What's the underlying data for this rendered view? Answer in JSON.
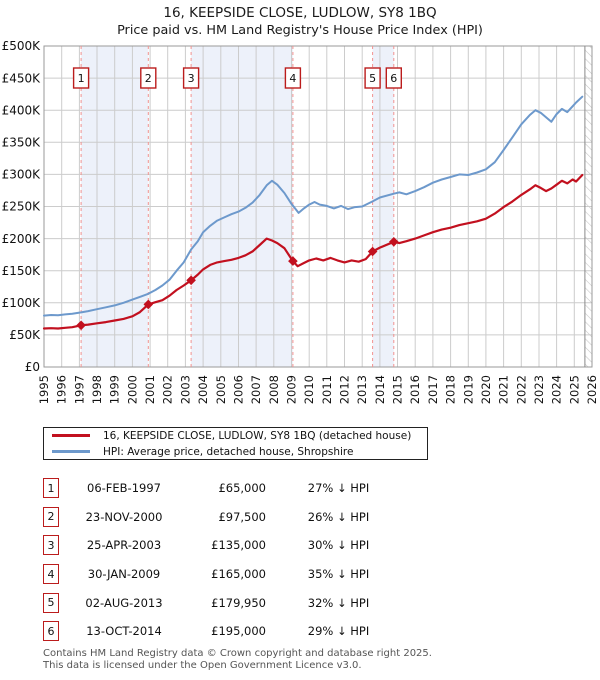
{
  "chart_data": {
    "type": "line",
    "title": "16, KEEPSIDE CLOSE, LUDLOW, SY8 1BQ",
    "subtitle": "Price paid vs. HM Land Registry's House Price Index (HPI)",
    "x_range": [
      1995,
      2026
    ],
    "y_range": [
      0,
      500000
    ],
    "y_tick_step": 50000,
    "grid": true,
    "legend_position": "bottom",
    "x_tick_labels": [
      "1995",
      "1996",
      "1997",
      "1998",
      "1999",
      "2000",
      "2001",
      "2002",
      "2003",
      "2004",
      "2005",
      "2006",
      "2007",
      "2008",
      "2009",
      "2010",
      "2011",
      "2012",
      "2013",
      "2014",
      "2015",
      "2016",
      "2017",
      "2018",
      "2019",
      "2020",
      "2021",
      "2022",
      "2023",
      "2024",
      "2025",
      "2026"
    ],
    "y_tick_labels": [
      "£0",
      "£50K",
      "£100K",
      "£150K",
      "£200K",
      "£250K",
      "£300K",
      "£350K",
      "£400K",
      "£450K",
      "£500K"
    ],
    "future_hatch_start": 2025.6,
    "series": [
      {
        "id": "property",
        "name": "16, KEEPSIDE CLOSE, LUDLOW, SY8 1BQ (detached house)",
        "color": "#c2101f",
        "width": 2.2,
        "points": [
          [
            1995.0,
            60000
          ],
          [
            1995.4,
            60500
          ],
          [
            1995.8,
            60000
          ],
          [
            1996.2,
            61000
          ],
          [
            1996.6,
            62000
          ],
          [
            1997.1,
            65000
          ],
          [
            1997.5,
            66000
          ],
          [
            1998.0,
            68000
          ],
          [
            1998.5,
            70000
          ],
          [
            1999.0,
            72500
          ],
          [
            1999.5,
            75000
          ],
          [
            2000.0,
            79000
          ],
          [
            2000.4,
            85000
          ],
          [
            2000.9,
            97500
          ],
          [
            2001.3,
            101000
          ],
          [
            2001.7,
            104000
          ],
          [
            2002.1,
            111000
          ],
          [
            2002.5,
            120000
          ],
          [
            2002.9,
            127000
          ],
          [
            2003.32,
            135000
          ],
          [
            2003.7,
            144000
          ],
          [
            2004.0,
            152000
          ],
          [
            2004.4,
            159000
          ],
          [
            2004.8,
            163000
          ],
          [
            2005.2,
            165000
          ],
          [
            2005.6,
            167000
          ],
          [
            2006.0,
            170000
          ],
          [
            2006.4,
            174000
          ],
          [
            2006.8,
            180000
          ],
          [
            2007.2,
            190000
          ],
          [
            2007.6,
            200000
          ],
          [
            2007.9,
            197000
          ],
          [
            2008.2,
            193000
          ],
          [
            2008.6,
            185000
          ],
          [
            2009.08,
            165000
          ],
          [
            2009.35,
            157000
          ],
          [
            2009.7,
            162000
          ],
          [
            2010.0,
            166000
          ],
          [
            2010.4,
            169000
          ],
          [
            2010.8,
            166000
          ],
          [
            2011.2,
            170000
          ],
          [
            2011.6,
            166000
          ],
          [
            2012.0,
            163000
          ],
          [
            2012.4,
            166000
          ],
          [
            2012.8,
            164000
          ],
          [
            2013.2,
            168000
          ],
          [
            2013.59,
            179950
          ],
          [
            2014.0,
            186000
          ],
          [
            2014.79,
            195000
          ],
          [
            2015.1,
            193000
          ],
          [
            2015.5,
            196000
          ],
          [
            2016.0,
            200000
          ],
          [
            2016.5,
            205000
          ],
          [
            2017.0,
            210000
          ],
          [
            2017.5,
            214000
          ],
          [
            2018.0,
            217000
          ],
          [
            2018.5,
            221000
          ],
          [
            2019.0,
            224000
          ],
          [
            2019.5,
            227000
          ],
          [
            2020.0,
            231000
          ],
          [
            2020.5,
            239000
          ],
          [
            2021.0,
            249000
          ],
          [
            2021.5,
            258000
          ],
          [
            2022.0,
            268000
          ],
          [
            2022.5,
            277000
          ],
          [
            2022.8,
            283000
          ],
          [
            2023.1,
            279000
          ],
          [
            2023.4,
            274000
          ],
          [
            2023.7,
            278000
          ],
          [
            2024.0,
            284000
          ],
          [
            2024.3,
            290000
          ],
          [
            2024.6,
            286000
          ],
          [
            2024.9,
            292000
          ],
          [
            2025.1,
            289000
          ],
          [
            2025.45,
            299000
          ]
        ]
      },
      {
        "id": "hpi",
        "name": "HPI: Average price, detached house, Shropshire",
        "color": "#6d99cc",
        "width": 2,
        "points": [
          [
            1995.0,
            80000
          ],
          [
            1995.4,
            81000
          ],
          [
            1995.8,
            80500
          ],
          [
            1996.2,
            82000
          ],
          [
            1996.6,
            83000
          ],
          [
            1997.1,
            85000
          ],
          [
            1997.5,
            87000
          ],
          [
            1998.0,
            90000
          ],
          [
            1998.5,
            93000
          ],
          [
            1999.0,
            96000
          ],
          [
            1999.5,
            100000
          ],
          [
            2000.0,
            105000
          ],
          [
            2000.5,
            110000
          ],
          [
            2000.9,
            114000
          ],
          [
            2001.3,
            120000
          ],
          [
            2001.7,
            127000
          ],
          [
            2002.1,
            136000
          ],
          [
            2002.5,
            150000
          ],
          [
            2002.9,
            163000
          ],
          [
            2003.32,
            183000
          ],
          [
            2003.7,
            196000
          ],
          [
            2004.0,
            210000
          ],
          [
            2004.4,
            220000
          ],
          [
            2004.8,
            228000
          ],
          [
            2005.2,
            233000
          ],
          [
            2005.6,
            238000
          ],
          [
            2006.0,
            242000
          ],
          [
            2006.4,
            248000
          ],
          [
            2006.8,
            256000
          ],
          [
            2007.2,
            268000
          ],
          [
            2007.6,
            283000
          ],
          [
            2007.9,
            290000
          ],
          [
            2008.2,
            284000
          ],
          [
            2008.6,
            271000
          ],
          [
            2009.0,
            254000
          ],
          [
            2009.4,
            240000
          ],
          [
            2009.7,
            247000
          ],
          [
            2010.0,
            253000
          ],
          [
            2010.3,
            257000
          ],
          [
            2010.6,
            253000
          ],
          [
            2011.0,
            251000
          ],
          [
            2011.4,
            247000
          ],
          [
            2011.8,
            251000
          ],
          [
            2012.2,
            246000
          ],
          [
            2012.6,
            249000
          ],
          [
            2013.0,
            250000
          ],
          [
            2013.59,
            258000
          ],
          [
            2014.0,
            264000
          ],
          [
            2014.79,
            270000
          ],
          [
            2015.1,
            272000
          ],
          [
            2015.5,
            269000
          ],
          [
            2016.0,
            274000
          ],
          [
            2016.5,
            280000
          ],
          [
            2017.0,
            287000
          ],
          [
            2017.5,
            292000
          ],
          [
            2018.0,
            296000
          ],
          [
            2018.5,
            300000
          ],
          [
            2019.0,
            299000
          ],
          [
            2019.5,
            303000
          ],
          [
            2020.0,
            308000
          ],
          [
            2020.5,
            319000
          ],
          [
            2021.0,
            338000
          ],
          [
            2021.5,
            358000
          ],
          [
            2022.0,
            378000
          ],
          [
            2022.5,
            393000
          ],
          [
            2022.8,
            400000
          ],
          [
            2023.1,
            396000
          ],
          [
            2023.4,
            389000
          ],
          [
            2023.7,
            382000
          ],
          [
            2024.0,
            394000
          ],
          [
            2024.3,
            402000
          ],
          [
            2024.6,
            397000
          ],
          [
            2024.9,
            406000
          ],
          [
            2025.1,
            412000
          ],
          [
            2025.45,
            421000
          ]
        ]
      }
    ],
    "sale_markers": [
      {
        "n": "1",
        "year": 1997.1,
        "price": 65000
      },
      {
        "n": "2",
        "year": 2000.9,
        "price": 97500
      },
      {
        "n": "3",
        "year": 2003.32,
        "price": 135000
      },
      {
        "n": "4",
        "year": 2009.08,
        "price": 165000
      },
      {
        "n": "5",
        "year": 2013.59,
        "price": 179950
      },
      {
        "n": "6",
        "year": 2014.79,
        "price": 195000
      }
    ],
    "ownership_bands": [
      [
        1997.1,
        2000.9
      ],
      [
        2003.32,
        2009.08
      ],
      [
        2013.59,
        2014.79
      ]
    ]
  },
  "sales_table": {
    "rows": [
      {
        "num": "1",
        "date": "06-FEB-1997",
        "price": "£65,000",
        "hpi_delta": "27% ↓ HPI"
      },
      {
        "num": "2",
        "date": "23-NOV-2000",
        "price": "£97,500",
        "hpi_delta": "26% ↓ HPI"
      },
      {
        "num": "3",
        "date": "25-APR-2003",
        "price": "£135,000",
        "hpi_delta": "30% ↓ HPI"
      },
      {
        "num": "4",
        "date": "30-JAN-2009",
        "price": "£165,000",
        "hpi_delta": "35% ↓ HPI"
      },
      {
        "num": "5",
        "date": "02-AUG-2013",
        "price": "£179,950",
        "hpi_delta": "32% ↓ HPI"
      },
      {
        "num": "6",
        "date": "13-OCT-2014",
        "price": "£195,000",
        "hpi_delta": "29% ↓ HPI"
      }
    ]
  },
  "footer": {
    "line1": "Contains HM Land Registry data © Crown copyright and database right 2025.",
    "line2": "This data is licensed under the Open Government Licence v3.0."
  },
  "colors": {
    "band": "#edf1fa",
    "grid": "#cccccc",
    "plot_border": "#9a9a9a",
    "dash": "#f29290",
    "box_border": "#bb1c1c",
    "hatch": "#c4c4c4",
    "hatch_edge": "#8a8a8a",
    "tick_text": "#111111"
  }
}
